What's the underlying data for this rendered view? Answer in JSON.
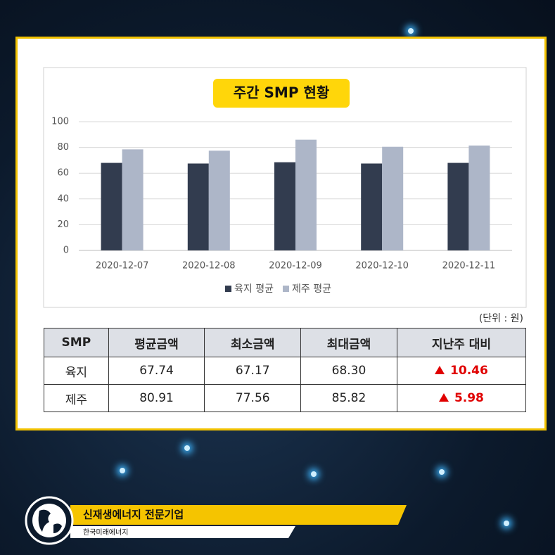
{
  "chart_data": {
    "type": "bar",
    "title": "주간 SMP 현황",
    "categories": [
      "2020-12-07",
      "2020-12-08",
      "2020-12-09",
      "2020-12-10",
      "2020-12-11"
    ],
    "series": [
      {
        "name": "육지 평균",
        "color": "#323c4f",
        "values": [
          68,
          67.5,
          68.5,
          67.5,
          68
        ]
      },
      {
        "name": "제주 평균",
        "color": "#adb6c8",
        "values": [
          78.5,
          77.5,
          86,
          80.5,
          81.5
        ]
      }
    ],
    "ylim": [
      0,
      100
    ],
    "yticks": [
      0,
      20,
      40,
      60,
      80,
      100
    ],
    "grid": true,
    "legend": "bottom"
  },
  "unit_note": "(단위 : 원)",
  "table": {
    "header": [
      "SMP",
      "평균금액",
      "최소금액",
      "최대금액",
      "지난주 대비"
    ],
    "rows": [
      [
        "육지",
        "67.74",
        "67.17",
        "68.30",
        "10.46"
      ],
      [
        "제주",
        "80.91",
        "77.56",
        "85.82",
        "5.98"
      ]
    ]
  },
  "footer": {
    "slogan": "신재생에너지 전문기업",
    "company": "한국미래에너지"
  }
}
